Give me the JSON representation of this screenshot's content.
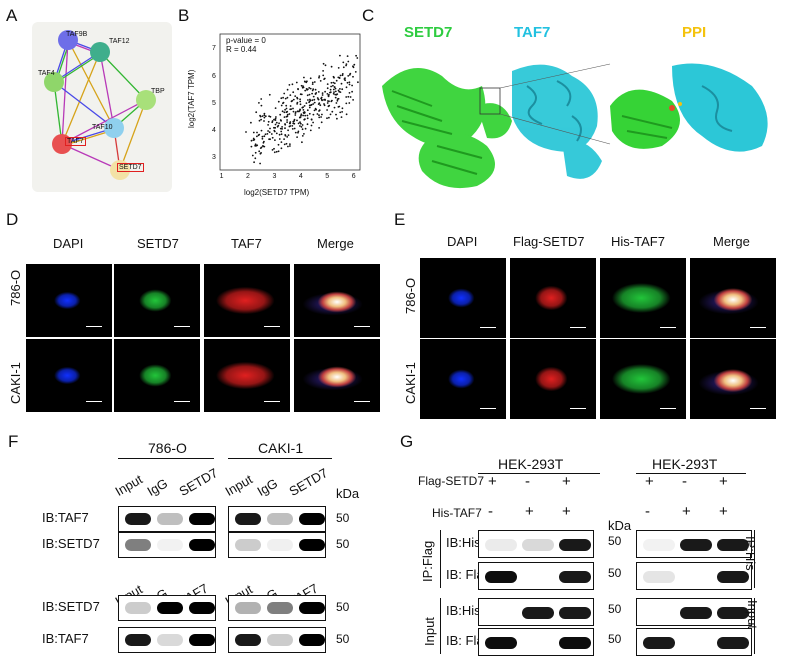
{
  "panels": {
    "A": {
      "letter": "A",
      "nodes": [
        "TAF9B",
        "TAF12",
        "TAF4",
        "TBP",
        "TAF10",
        "TAF7",
        "SETD7"
      ]
    },
    "B": {
      "letter": "B",
      "annotation_p": "p-value = 0",
      "annotation_r": "R = 0.44",
      "xlabel": "log2(SETD7 TPM)",
      "ylabel": "log2(TAF7 TPM)",
      "xticks": [
        "1",
        "2",
        "3",
        "4",
        "5",
        "6"
      ],
      "yticks": [
        "3",
        "4",
        "5",
        "6",
        "7"
      ]
    },
    "C": {
      "letter": "C",
      "title_1": "SETD7",
      "title_2": "TAF7",
      "title_3": "PPI"
    },
    "D": {
      "letter": "D",
      "columns": [
        "DAPI",
        "SETD7",
        "TAF7",
        "Merge"
      ],
      "rows": [
        "786-O",
        "CAKI-1"
      ]
    },
    "E": {
      "letter": "E",
      "columns": [
        "DAPI",
        "Flag-SETD7",
        "His-TAF7",
        "Merge"
      ],
      "rows": [
        "786-O",
        "CAKI-1"
      ]
    },
    "F": {
      "letter": "F",
      "cell_lines": [
        "786-O",
        "CAKI-1"
      ],
      "lanes_top": [
        "Input",
        "IgG",
        "SETD7"
      ],
      "lanes_bottom": [
        "Input",
        "IgG",
        "TAF7"
      ],
      "kda": "kDa",
      "blot_labels": [
        "IB:TAF7",
        "IB:SETD7",
        "IB:SETD7",
        "IB:TAF7"
      ],
      "marker": "50"
    },
    "G": {
      "letter": "G",
      "cell_lines": [
        "HEK-293T",
        "HEK-293T"
      ],
      "flag_label": "Flag-SETD7",
      "his_label": "His-TAF7",
      "flag_signs": [
        "+",
        "-",
        "+"
      ],
      "his_signs": [
        "-",
        "+",
        "+"
      ],
      "kda": "kDa",
      "ip_left": "IP:Flag",
      "ip_right": "IP:His",
      "input": "Input",
      "blot_labels": [
        "IB:His",
        "IB: Flag",
        "IB:His",
        "IB: Flag"
      ],
      "marker": "50"
    }
  }
}
